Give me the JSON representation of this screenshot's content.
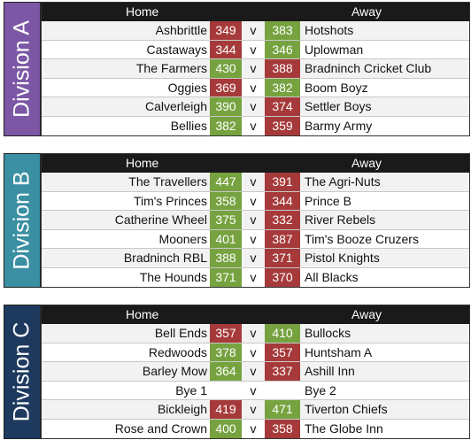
{
  "colors": {
    "win": "#76a340",
    "lose": "#a63a3a",
    "div_a": "#7b57a6",
    "div_b": "#3a8fa3",
    "div_c": "#1d3a5e"
  },
  "divisions": [
    {
      "label": "Division A",
      "home_header": "Home",
      "away_header": "Away",
      "matches": [
        {
          "home": "Ashbrittle",
          "home_score": "349",
          "v": "v",
          "away_score": "383",
          "away": "Hotshots"
        },
        {
          "home": "Castaways",
          "home_score": "344",
          "v": "v",
          "away_score": "346",
          "away": "Uplowman"
        },
        {
          "home": "The Farmers",
          "home_score": "430",
          "v": "v",
          "away_score": "388",
          "away": "Bradninch Cricket Club"
        },
        {
          "home": "Oggies",
          "home_score": "369",
          "v": "v",
          "away_score": "382",
          "away": "Boom Boyz"
        },
        {
          "home": "Calverleigh",
          "home_score": "390",
          "v": "v",
          "away_score": "374",
          "away": "Settler Boys"
        },
        {
          "home": "Bellies",
          "home_score": "382",
          "v": "v",
          "away_score": "359",
          "away": "Barmy Army"
        }
      ]
    },
    {
      "label": "Division B",
      "home_header": "Home",
      "away_header": "Away",
      "matches": [
        {
          "home": "The Travellers",
          "home_score": "447",
          "v": "v",
          "away_score": "391",
          "away": "The Agri-Nuts"
        },
        {
          "home": "Tim's Princes",
          "home_score": "358",
          "v": "v",
          "away_score": "344",
          "away": "Prince B"
        },
        {
          "home": "Catherine Wheel",
          "home_score": "375",
          "v": "v",
          "away_score": "332",
          "away": "River Rebels"
        },
        {
          "home": "Mooners",
          "home_score": "401",
          "v": "v",
          "away_score": "387",
          "away": "Tim's Booze Cruzers"
        },
        {
          "home": "Bradninch RBL",
          "home_score": "388",
          "v": "v",
          "away_score": "371",
          "away": "Pistol Knights"
        },
        {
          "home": "The Hounds",
          "home_score": "371",
          "v": "v",
          "away_score": "370",
          "away": "All Blacks"
        }
      ]
    },
    {
      "label": "Division C",
      "home_header": "Home",
      "away_header": "Away",
      "matches": [
        {
          "home": "Bell Ends",
          "home_score": "357",
          "v": "v",
          "away_score": "410",
          "away": "Bullocks"
        },
        {
          "home": "Redwoods",
          "home_score": "378",
          "v": "v",
          "away_score": "357",
          "away": "Huntsham A"
        },
        {
          "home": "Barley Mow",
          "home_score": "364",
          "v": "v",
          "away_score": "337",
          "away": "Ashill Inn"
        },
        {
          "home": "Bye 1",
          "home_score": "",
          "v": "v",
          "away_score": "",
          "away": "Bye 2"
        },
        {
          "home": "Bickleigh",
          "home_score": "419",
          "v": "v",
          "away_score": "471",
          "away": "Tiverton Chiefs"
        },
        {
          "home": "Rose and Crown",
          "home_score": "400",
          "v": "v",
          "away_score": "358",
          "away": "The Globe Inn"
        }
      ]
    }
  ]
}
